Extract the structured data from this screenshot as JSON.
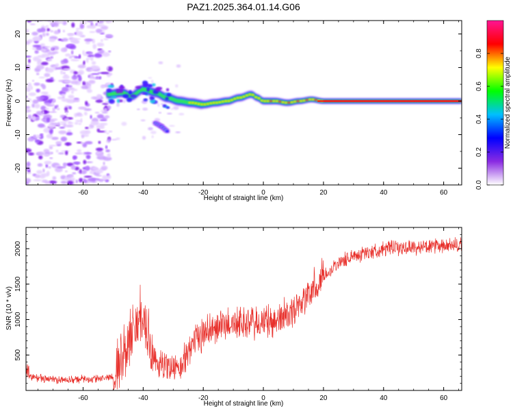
{
  "chart_data": [
    {
      "type": "heatmap",
      "title": "PAZ1.2025.364.01.14.G06",
      "xlabel": "Height of straight line (km)",
      "ylabel": "Frequency (Hz)",
      "xlim": [
        -79,
        66
      ],
      "ylim": [
        -25,
        24
      ],
      "xticks": [
        -60,
        -40,
        -20,
        0,
        20,
        40,
        60
      ],
      "yticks": [
        -20,
        -10,
        0,
        10,
        20
      ],
      "colorbar": {
        "label": "Normalized spectral amplitude",
        "range": [
          0.0,
          1.0
        ],
        "ticks": [
          0.0,
          0.2,
          0.4,
          0.6,
          0.8
        ],
        "colormap": [
          "#ffffff",
          "#8a2be2",
          "#0000ff",
          "#00bfff",
          "#00ff00",
          "#ffff00",
          "#ff0000",
          "#ff1493"
        ]
      },
      "ridge": {
        "description": "dominant frequency track",
        "points": [
          [
            -52,
            2.0
          ],
          [
            -47,
            2.5
          ],
          [
            -44,
            1.5
          ],
          [
            -40,
            3.5
          ],
          [
            -36,
            2.5
          ],
          [
            -32,
            1.0
          ],
          [
            -28,
            0.0
          ],
          [
            -24,
            -0.5
          ],
          [
            -20,
            -1.0
          ],
          [
            -16,
            -0.5
          ],
          [
            -12,
            0.0
          ],
          [
            -8,
            1.0
          ],
          [
            -4,
            2.0
          ],
          [
            -2,
            1.0
          ],
          [
            0,
            0.0
          ],
          [
            4,
            0.0
          ],
          [
            8,
            -0.5
          ],
          [
            12,
            0.0
          ],
          [
            16,
            0.5
          ],
          [
            20,
            0.0
          ],
          [
            30,
            0.0
          ],
          [
            40,
            0.0
          ],
          [
            50,
            0.0
          ],
          [
            66,
            0.0
          ]
        ],
        "secondary_branch": [
          [
            -36,
            -6.5
          ],
          [
            -34,
            -7.5
          ],
          [
            -32,
            -9.0
          ]
        ]
      }
    },
    {
      "type": "line",
      "xlabel": "Height of straight line (km)",
      "ylabel": "SNR (10 * v/v)",
      "xlim": [
        -79,
        66
      ],
      "ylim": [
        0,
        2300
      ],
      "xticks": [
        -60,
        -40,
        -20,
        0,
        20,
        40,
        60
      ],
      "yticks": [
        500,
        1000,
        1500,
        2000
      ],
      "series": [
        {
          "name": "SNR",
          "color": "#e8302b",
          "envelope": [
            [
              -79,
              200
            ],
            [
              -75,
              180
            ],
            [
              -70,
              150
            ],
            [
              -65,
              150
            ],
            [
              -60,
              160
            ],
            [
              -55,
              160
            ],
            [
              -50,
              200
            ],
            [
              -47,
              450
            ],
            [
              -45,
              700
            ],
            [
              -43,
              900
            ],
            [
              -41,
              1000
            ],
            [
              -39,
              800
            ],
            [
              -37,
              500
            ],
            [
              -35,
              400
            ],
            [
              -33,
              350
            ],
            [
              -31,
              350
            ],
            [
              -29,
              300
            ],
            [
              -27,
              320
            ],
            [
              -25,
              600
            ],
            [
              -22,
              700
            ],
            [
              -20,
              820
            ],
            [
              -15,
              900
            ],
            [
              -10,
              950
            ],
            [
              -5,
              950
            ],
            [
              0,
              940
            ],
            [
              5,
              1000
            ],
            [
              10,
              1150
            ],
            [
              15,
              1350
            ],
            [
              18,
              1500
            ],
            [
              20,
              1620
            ],
            [
              25,
              1800
            ],
            [
              30,
              1900
            ],
            [
              35,
              1950
            ],
            [
              40,
              2000
            ],
            [
              50,
              2020
            ],
            [
              60,
              2030
            ],
            [
              66,
              2050
            ]
          ]
        }
      ]
    }
  ]
}
